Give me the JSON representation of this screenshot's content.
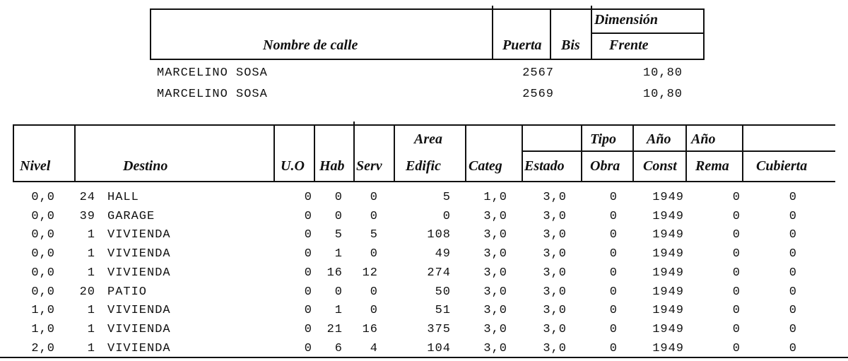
{
  "street_table": {
    "headers": {
      "nombre": "Nombre de calle",
      "puerta": "Puerta",
      "bis": "Bis",
      "dimension": "Dimensión",
      "frente": "Frente"
    },
    "rows": [
      {
        "nombre": "MARCELINO SOSA",
        "puerta": "2567",
        "frente": "10,80"
      },
      {
        "nombre": "MARCELINO SOSA",
        "puerta": "2569",
        "frente": "10,80"
      }
    ]
  },
  "units_table": {
    "headers": {
      "nivel": "Nivel",
      "destino": "Destino",
      "uo": "U.O",
      "hab": "Hab",
      "serv": "Serv",
      "area1": "Area",
      "area2": "Edific",
      "categ": "Categ",
      "estado": "Estado",
      "tipo1": "Tipo",
      "tipo2": "Obra",
      "anio1": "Año",
      "anio2": "Const",
      "anio_rema1": "Año",
      "anio_rema2": "Rema",
      "cubierta": "Cubierta"
    },
    "rows": [
      {
        "nivel": "0,0",
        "code": "24",
        "destino": "HALL",
        "uo": "0",
        "hab": "0",
        "serv": "0",
        "area": "5",
        "categ": "1,0",
        "estado": "3,0",
        "tipo": "0",
        "const": "1949",
        "rema": "0",
        "cubierta": "0"
      },
      {
        "nivel": "0,0",
        "code": "39",
        "destino": "GARAGE",
        "uo": "0",
        "hab": "0",
        "serv": "0",
        "area": "0",
        "categ": "3,0",
        "estado": "3,0",
        "tipo": "0",
        "const": "1949",
        "rema": "0",
        "cubierta": "0"
      },
      {
        "nivel": "0,0",
        "code": "1",
        "destino": "VIVIENDA",
        "uo": "0",
        "hab": "5",
        "serv": "5",
        "area": "108",
        "categ": "3,0",
        "estado": "3,0",
        "tipo": "0",
        "const": "1949",
        "rema": "0",
        "cubierta": "0"
      },
      {
        "nivel": "0,0",
        "code": "1",
        "destino": "VIVIENDA",
        "uo": "0",
        "hab": "1",
        "serv": "0",
        "area": "49",
        "categ": "3,0",
        "estado": "3,0",
        "tipo": "0",
        "const": "1949",
        "rema": "0",
        "cubierta": "0"
      },
      {
        "nivel": "0,0",
        "code": "1",
        "destino": "VIVIENDA",
        "uo": "0",
        "hab": "16",
        "serv": "12",
        "area": "274",
        "categ": "3,0",
        "estado": "3,0",
        "tipo": "0",
        "const": "1949",
        "rema": "0",
        "cubierta": "0"
      },
      {
        "nivel": "0,0",
        "code": "20",
        "destino": "PATIO",
        "uo": "0",
        "hab": "0",
        "serv": "0",
        "area": "50",
        "categ": "3,0",
        "estado": "3,0",
        "tipo": "0",
        "const": "1949",
        "rema": "0",
        "cubierta": "0"
      },
      {
        "nivel": "1,0",
        "code": "1",
        "destino": "VIVIENDA",
        "uo": "0",
        "hab": "1",
        "serv": "0",
        "area": "51",
        "categ": "3,0",
        "estado": "3,0",
        "tipo": "0",
        "const": "1949",
        "rema": "0",
        "cubierta": "0"
      },
      {
        "nivel": "1,0",
        "code": "1",
        "destino": "VIVIENDA",
        "uo": "0",
        "hab": "21",
        "serv": "16",
        "area": "375",
        "categ": "3,0",
        "estado": "3,0",
        "tipo": "0",
        "const": "1949",
        "rema": "0",
        "cubierta": "0"
      },
      {
        "nivel": "2,0",
        "code": "1",
        "destino": "VIVIENDA",
        "uo": "0",
        "hab": "6",
        "serv": "4",
        "area": "104",
        "categ": "3,0",
        "estado": "3,0",
        "tipo": "0",
        "const": "1949",
        "rema": "0",
        "cubierta": "0"
      }
    ]
  }
}
